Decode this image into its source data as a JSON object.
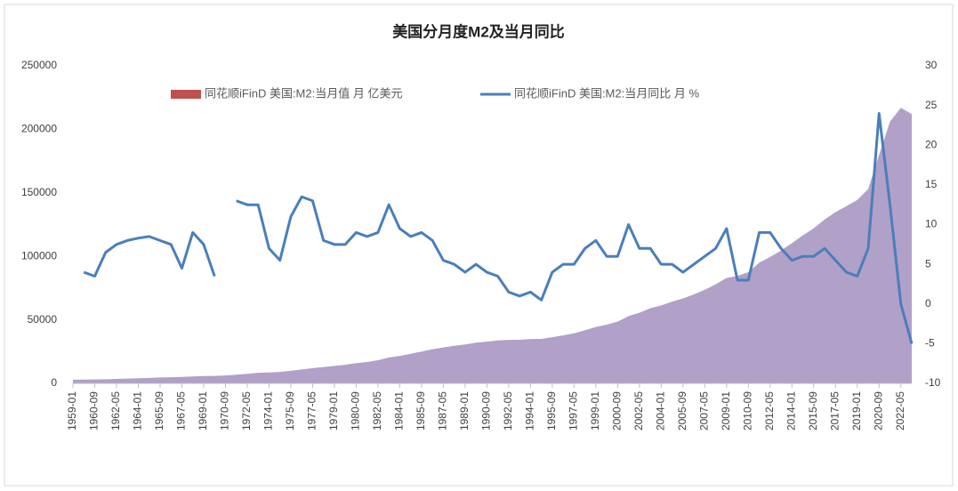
{
  "chart_data": {
    "type": "area_line",
    "title": "美国分月度M2及当月同比",
    "categories": [
      "1959-01",
      null,
      "1960-09",
      null,
      "1962-05",
      null,
      "1964-01",
      null,
      "1965-09",
      null,
      "1967-05",
      null,
      "1969-01",
      null,
      "1970-09",
      null,
      "1972-05",
      null,
      "1974-01",
      null,
      "1975-09",
      null,
      "1977-05",
      null,
      "1979-01",
      null,
      "1980-09",
      null,
      "1982-05",
      null,
      "1984-01",
      null,
      "1985-09",
      null,
      "1987-05",
      null,
      "1989-01",
      null,
      "1990-09",
      null,
      "1992-05",
      null,
      "1994-01",
      null,
      "1995-09",
      null,
      "1997-05",
      null,
      "1999-01",
      null,
      "2000-09",
      null,
      "2002-05",
      null,
      "2004-01",
      null,
      "2005-09",
      null,
      "2007-05",
      null,
      "2009-01",
      null,
      "2010-09",
      null,
      "2012-05",
      null,
      "2014-01",
      null,
      "2015-09",
      null,
      "2017-05",
      null,
      "2019-01",
      null,
      "2020-09",
      null,
      "2022-05",
      null
    ],
    "series": [
      {
        "name": "同花顺iFinD 美国:M2:当月值 月 亿美元",
        "color": "#b1a0c8",
        "legend_color": "#c0504d",
        "type": "area",
        "values": [
          2870,
          2970,
          3080,
          3250,
          3490,
          3760,
          4020,
          4320,
          4600,
          4800,
          5100,
          5450,
          5800,
          5880,
          6200,
          6800,
          7500,
          8300,
          8600,
          9000,
          9900,
          10900,
          12000,
          12900,
          13700,
          14600,
          15900,
          16800,
          18200,
          20400,
          21600,
          23300,
          25000,
          26900,
          28300,
          29600,
          30600,
          32000,
          32800,
          33800,
          34200,
          34300,
          34900,
          35000,
          36300,
          37800,
          39400,
          41800,
          44400,
          46200,
          48600,
          53000,
          55600,
          59200,
          61400,
          64300,
          66900,
          70000,
          73700,
          78000,
          83000,
          84600,
          87500,
          95000,
          99500,
          104500,
          110400,
          116500,
          122000,
          129000,
          134800,
          139500,
          144400,
          152900,
          180000,
          206000,
          217000,
          212000
        ]
      },
      {
        "name": "同花顺iFinD 美国:M2:当月同比 月 %",
        "color": "#4a7ebb",
        "type": "line",
        "axis": "y2",
        "values": [
          null,
          4.0,
          3.5,
          6.5,
          7.5,
          8.0,
          8.3,
          8.5,
          8.0,
          7.5,
          4.5,
          9.0,
          7.5,
          3.5,
          null,
          13,
          12.5,
          12.5,
          7,
          5.5,
          11,
          13.5,
          13,
          8,
          7.5,
          7.5,
          9,
          8.5,
          9,
          12.5,
          9.5,
          8.5,
          9,
          8,
          5.5,
          5,
          4,
          5,
          4,
          3.5,
          1.5,
          1,
          1.5,
          0.5,
          4,
          5,
          5,
          7,
          8,
          6,
          6,
          10,
          7,
          7,
          5,
          5,
          4,
          5,
          6,
          7,
          9.5,
          3,
          3,
          9,
          9,
          7,
          5.5,
          6,
          6,
          7,
          5.5,
          4,
          3.5,
          7,
          24,
          12.5,
          0,
          -5
        ]
      }
    ],
    "ylim": [
      0,
      250000
    ],
    "yticks": [
      0,
      50000,
      100000,
      150000,
      200000,
      250000
    ],
    "y2lim": [
      -10,
      30
    ],
    "y2ticks": [
      -10,
      -5,
      0,
      5,
      10,
      15,
      20,
      25,
      30
    ],
    "grid": false,
    "legend": "top"
  }
}
